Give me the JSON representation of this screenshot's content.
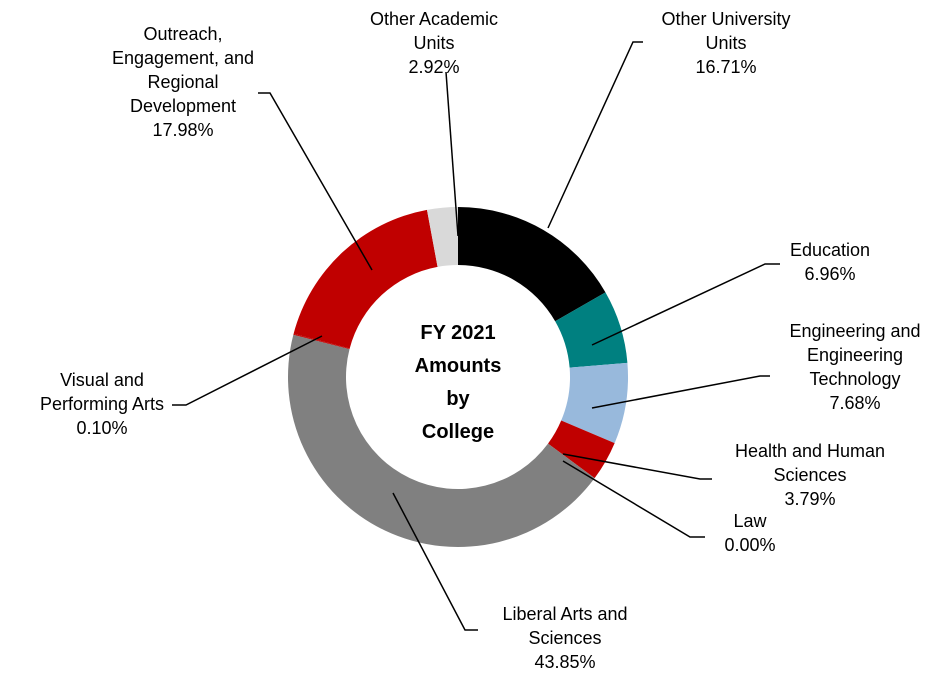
{
  "chart_data": {
    "type": "pie",
    "variant": "doughnut",
    "center_label": [
      "FY 2021",
      "Amounts",
      "by",
      "College"
    ],
    "legend": "none",
    "slices": [
      {
        "category": "Other University Units",
        "label_lines": [
          "Other University",
          "Units"
        ],
        "value": 16.71,
        "value_label": "16.71%",
        "color": "#000000"
      },
      {
        "category": "Education",
        "label_lines": [
          "Education"
        ],
        "value": 6.96,
        "value_label": "6.96%",
        "color": "#008080"
      },
      {
        "category": "Engineering and Engineering Technology",
        "label_lines": [
          "Engineering and",
          "Engineering",
          "Technology"
        ],
        "value": 7.68,
        "value_label": "7.68%",
        "color": "#98b9dc"
      },
      {
        "category": "Health and Human Sciences",
        "label_lines": [
          "Health and Human",
          "Sciences"
        ],
        "value": 3.79,
        "value_label": "3.79%",
        "color": "#c00000"
      },
      {
        "category": "Law",
        "label_lines": [
          "Law"
        ],
        "value": 0.0,
        "value_label": "0.00%",
        "color": "#808080"
      },
      {
        "category": "Liberal Arts and Sciences",
        "label_lines": [
          "Liberal Arts and",
          "Sciences"
        ],
        "value": 43.85,
        "value_label": "43.85%",
        "color": "#808080"
      },
      {
        "category": "Visual and Performing Arts",
        "label_lines": [
          "Visual and",
          "Performing Arts"
        ],
        "value": 0.1,
        "value_label": "0.10%",
        "color": "#c00000"
      },
      {
        "category": "Outreach, Engagement, and Regional Development",
        "label_lines": [
          "Outreach,",
          "Engagement, and",
          "Regional",
          "Development"
        ],
        "value": 17.98,
        "value_label": "17.98%",
        "color": "#c00000"
      },
      {
        "category": "Other Academic Units",
        "label_lines": [
          "Other Academic",
          "Units"
        ],
        "value": 2.92,
        "value_label": "2.92%",
        "color": "#d9d9d9"
      }
    ]
  }
}
